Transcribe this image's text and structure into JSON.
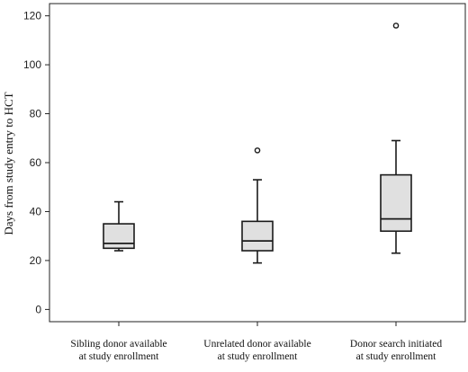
{
  "chart_data": {
    "type": "box",
    "ylabel": "Days from study entry to HCT",
    "ylim": [
      -5,
      125
    ],
    "yticks": [
      0,
      20,
      40,
      60,
      80,
      100,
      120
    ],
    "categories": [
      [
        "Sibling donor available",
        "at study enrollment"
      ],
      [
        "Unrelated donor available",
        "at study enrollment"
      ],
      [
        "Donor search initiated",
        "at study enrollment"
      ]
    ],
    "boxes": [
      {
        "whisker_low": 24,
        "q1": 25,
        "median": 27,
        "q3": 35,
        "whisker_high": 44,
        "outliers": []
      },
      {
        "whisker_low": 19,
        "q1": 24,
        "median": 28,
        "q3": 36,
        "whisker_high": 53,
        "outliers": [
          65
        ]
      },
      {
        "whisker_low": 23,
        "q1": 32,
        "median": 37,
        "q3": 55,
        "whisker_high": 69,
        "outliers": [
          116
        ]
      }
    ],
    "box_fill": "#e0e0e0",
    "line_color": "#1a1a1a",
    "grid": false,
    "legend": "none"
  }
}
